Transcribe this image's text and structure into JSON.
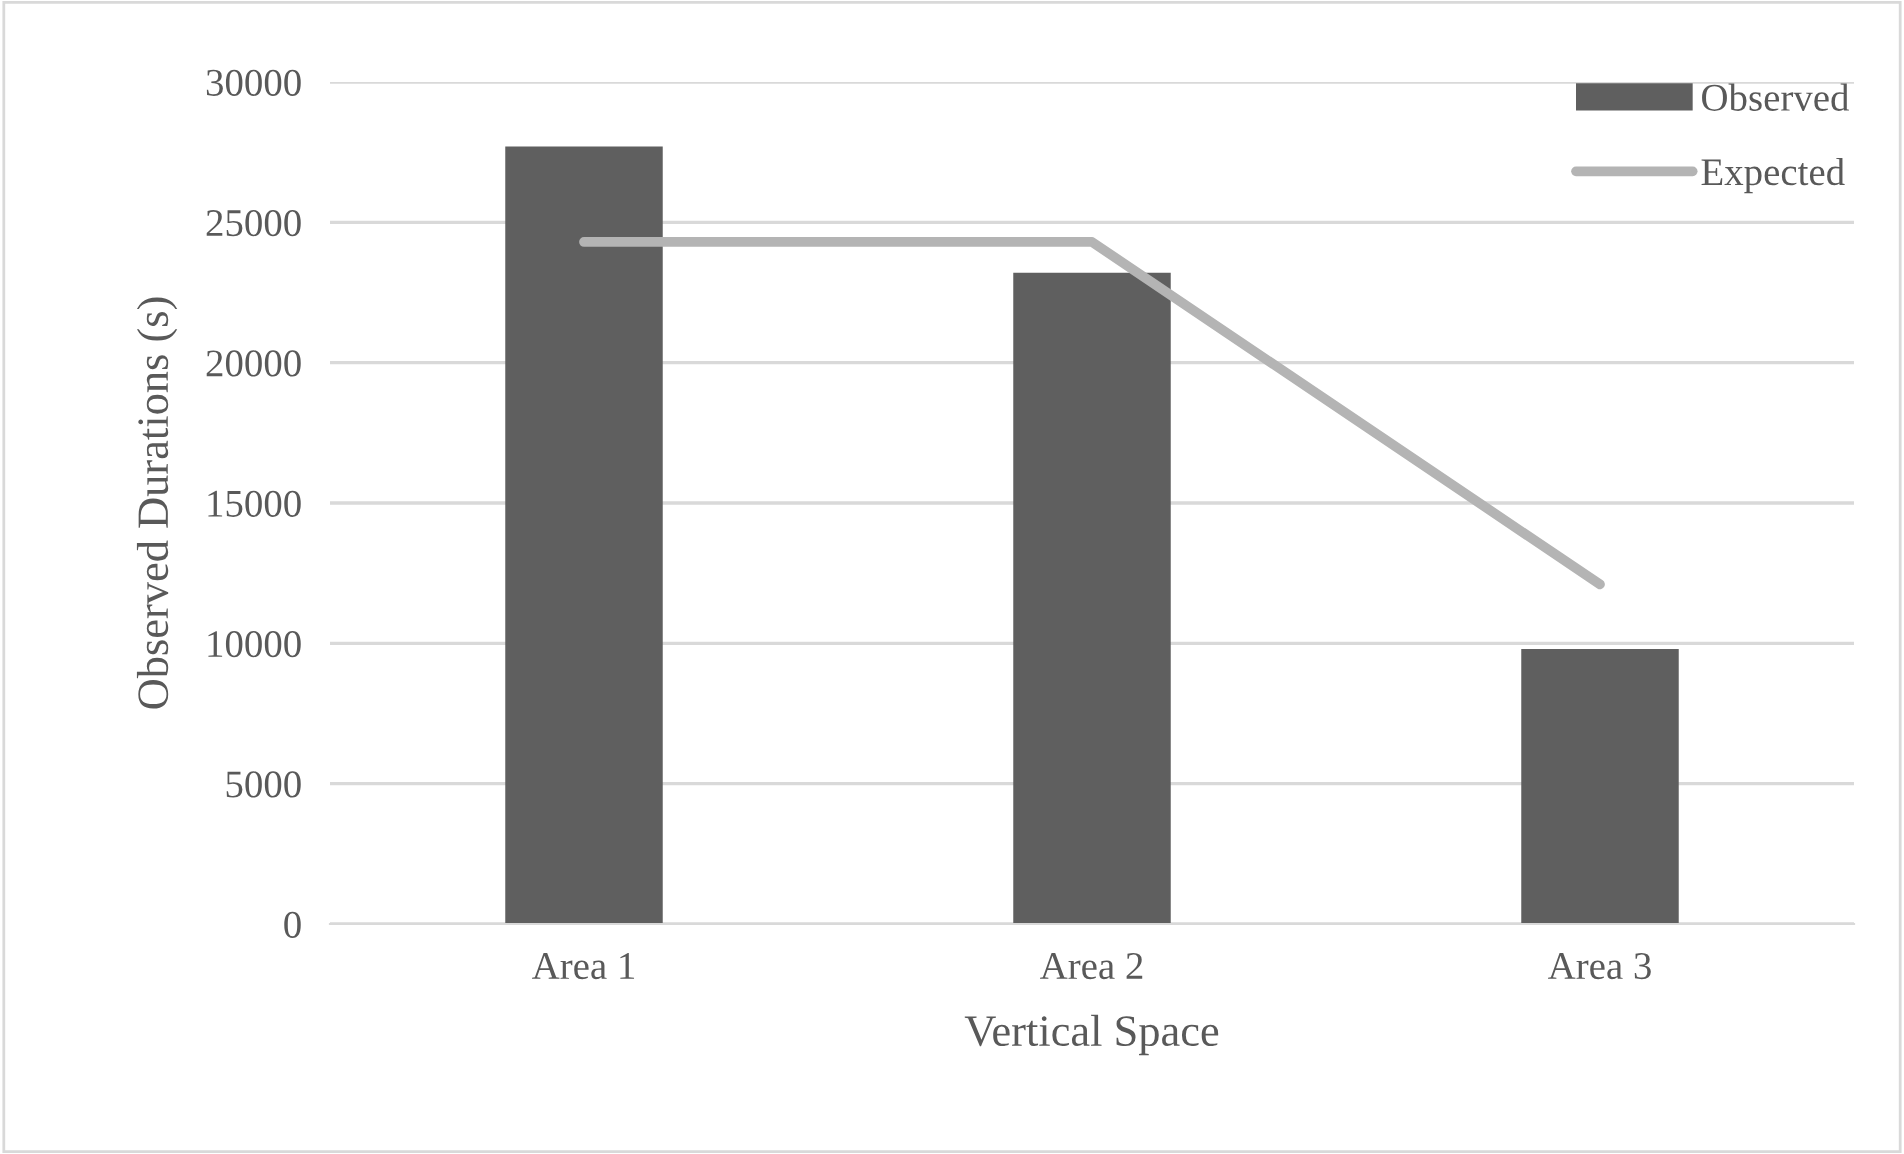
{
  "chart_data": {
    "type": "bar",
    "xlabel": "Vertical Space",
    "ylabel": "Observed Durations (s)",
    "categories": [
      "Area 1",
      "Area 2",
      "Area 3"
    ],
    "series": [
      {
        "name": "Observed",
        "color": "#5f5f5f",
        "values": [
          27700,
          23200,
          9800
        ]
      },
      {
        "name": "Expected",
        "type": "line",
        "color": "#b4b4b4",
        "values": [
          24300,
          24300,
          12100
        ]
      }
    ],
    "ylim": [
      0,
      30000
    ],
    "yticks": [
      0,
      5000,
      10000,
      15000,
      20000,
      25000,
      30000
    ],
    "grid": "y",
    "legend": "top right"
  }
}
